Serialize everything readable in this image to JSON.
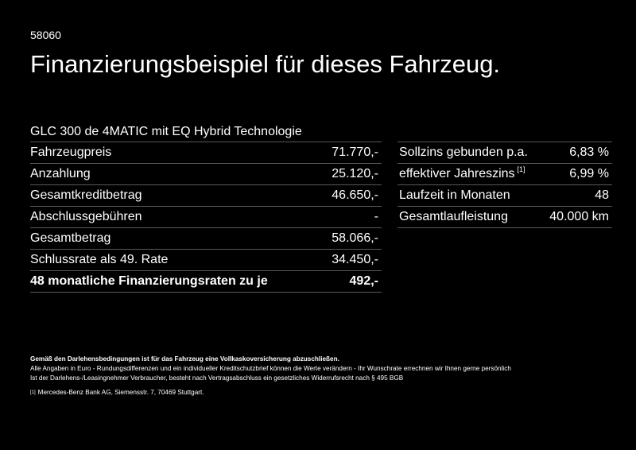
{
  "code": "58060",
  "title": "Finanzierungsbeispiel für dieses Fahrzeug.",
  "model": "GLC 300 de 4MATIC mit EQ Hybrid Technologie",
  "left_rows": [
    {
      "label": "Fahrzeugpreis",
      "value": "71.770,-"
    },
    {
      "label": "Anzahlung",
      "value": "25.120,-"
    },
    {
      "label": "Gesamtkreditbetrag",
      "value": "46.650,-"
    },
    {
      "label": "Abschlussgebühren",
      "value": "-"
    },
    {
      "label": "Gesamtbetrag",
      "value": "58.066,-"
    },
    {
      "label": "Schlussrate als 49. Rate",
      "value": "34.450,-"
    },
    {
      "label": "48 monatliche Finanzierungsraten zu je",
      "value": "492,-"
    }
  ],
  "right_rows": [
    {
      "label": "Sollzins gebunden p.a.",
      "value": "6,83 %"
    },
    {
      "label": "effektiver Jahreszins",
      "sup": "[1]",
      "value": "6,99 %"
    },
    {
      "label": "Laufzeit in Monaten",
      "value": "48"
    },
    {
      "label": "Gesamtlaufleistung",
      "value": "40.000 km"
    }
  ],
  "notes": {
    "insurance": "Gemäß den Darlehensbedingungen ist für das Fahrzeug eine Vollkaskoversicherung abzuschließen.",
    "line1": "Alle Angaben in Euro - Rundungsdifferenzen und ein individueller Kreditschutzbrief können die Werte verändern - Ihr Wunschrate errechnen wir Ihnen gerne persönlich",
    "line2": "Ist der Darlehens-/Leasingnehmer Verbraucher, besteht nach Vertragsabschluss ein gesetzliches Widerrufsrecht nach § 495 BGB",
    "footnote_marker": "[1]",
    "footnote": "Mercedes-Benz Bank AG, Siemensstr. 7, 70469 Stuttgart."
  }
}
